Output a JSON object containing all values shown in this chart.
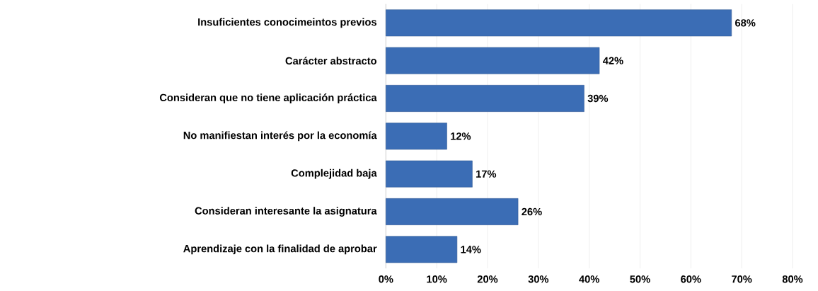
{
  "chart_data": {
    "type": "bar",
    "orientation": "horizontal",
    "categories": [
      "Insuficientes conocimeintos previos",
      "Carácter abstracto",
      "Consideran que no tiene aplicación práctica",
      "No manifiestan interés por la economía",
      "Complejidad baja",
      "Consideran interesante la asignatura",
      "Aprendizaje con la finalidad de aprobar"
    ],
    "values": [
      68,
      42,
      39,
      12,
      17,
      26,
      14
    ],
    "value_labels": [
      "68%",
      "42%",
      "39%",
      "12%",
      "17%",
      "26%",
      "14%"
    ],
    "color": "#3b6db5",
    "xlim": [
      0,
      80
    ],
    "xticks": [
      {
        "value": 0,
        "label": "0%"
      },
      {
        "value": 10,
        "label": "10%"
      },
      {
        "value": 20,
        "label": "20%"
      },
      {
        "value": 30,
        "label": "30%"
      },
      {
        "value": 40,
        "label": "40%"
      },
      {
        "value": 50,
        "label": "50%"
      },
      {
        "value": 60,
        "label": "60%"
      },
      {
        "value": 70,
        "label": "70%"
      },
      {
        "value": 80,
        "label": "80%"
      }
    ],
    "grid": "x"
  }
}
